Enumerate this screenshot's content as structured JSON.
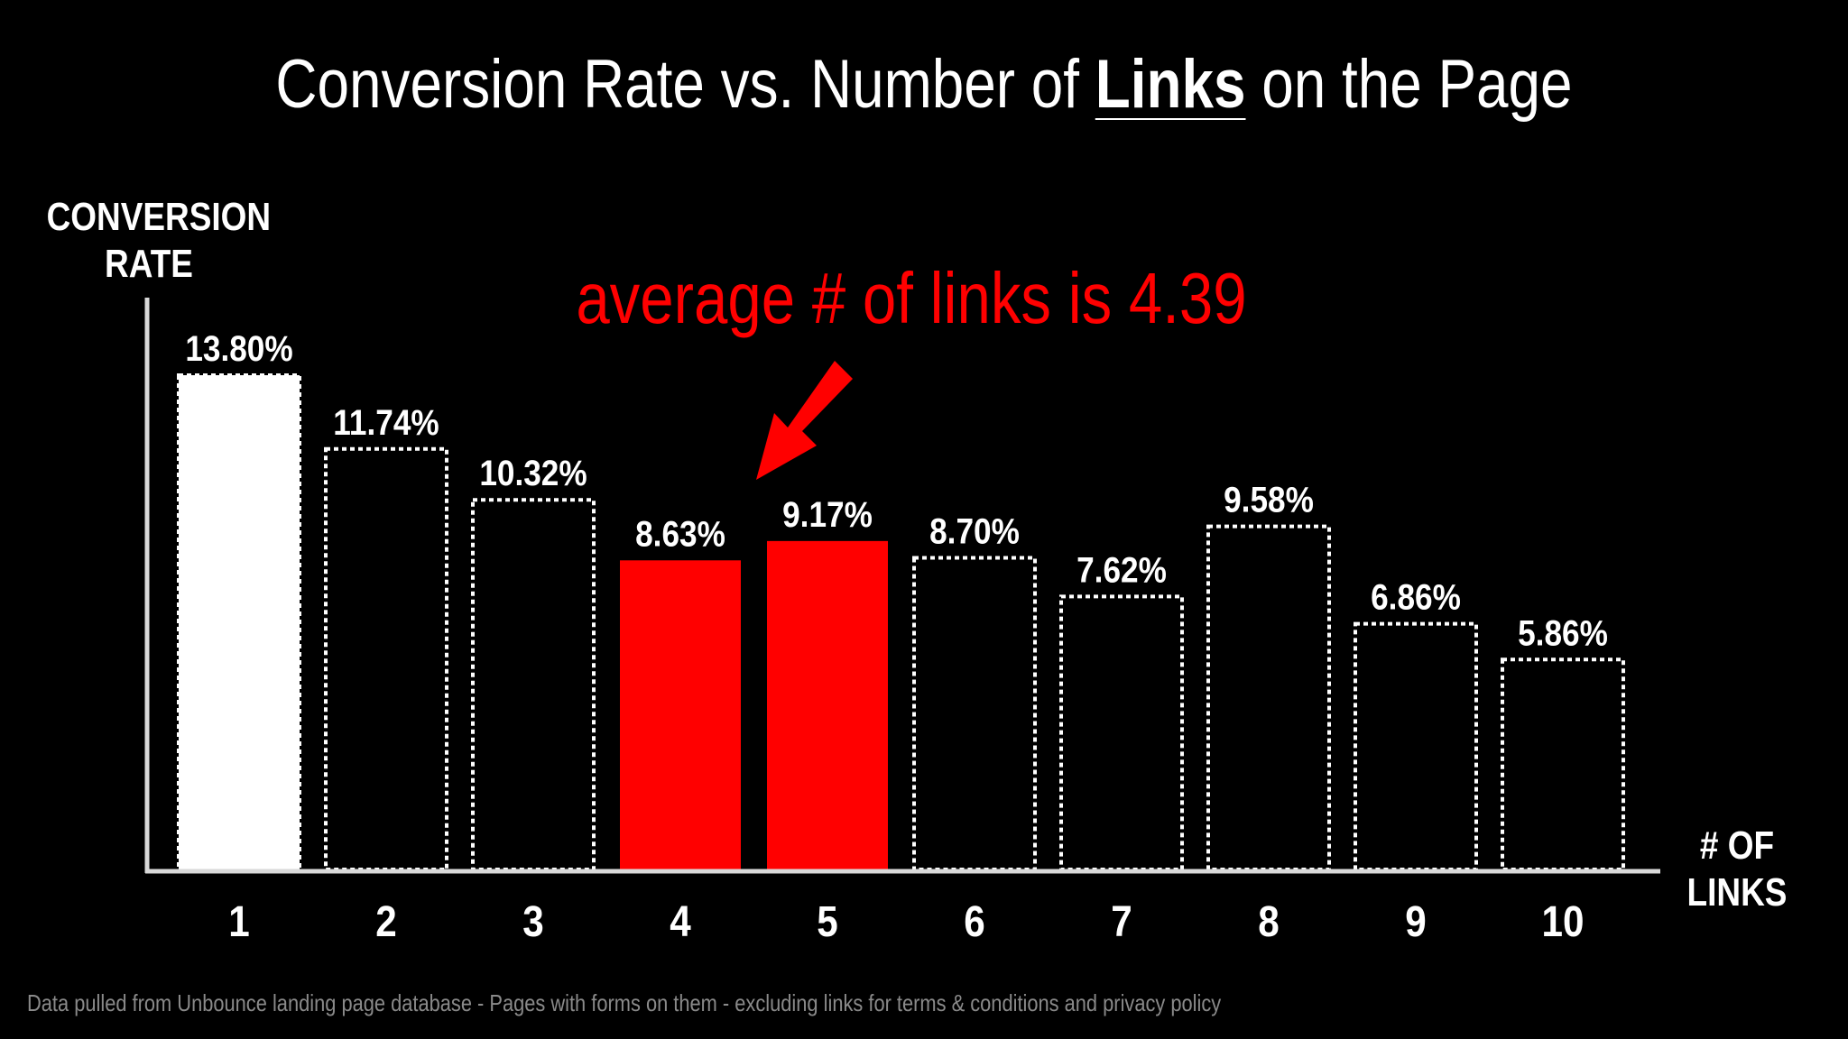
{
  "title": {
    "before": "Conversion Rate vs. Number of ",
    "emphasis": "Links",
    "after": " on the Page"
  },
  "annotation": "average # of links is 4.39",
  "footnote": "Data pulled from Unbounce landing page database - Pages with forms on them - excluding links for terms & conditions and privacy policy",
  "colors": {
    "background": "#000000",
    "bar_outline": "#ffffff",
    "highlight": "#ff0000",
    "top_bar_fill": "#ffffff"
  },
  "chart_data": {
    "type": "bar",
    "ylabel": "CONVERSION RATE",
    "xlabel": "# OF LINKS",
    "categories": [
      "1",
      "2",
      "3",
      "4",
      "5",
      "6",
      "7",
      "8",
      "9",
      "10"
    ],
    "values": [
      13.8,
      11.74,
      10.32,
      8.63,
      9.17,
      8.7,
      7.62,
      9.58,
      6.86,
      5.86
    ],
    "value_labels": [
      "13.80%",
      "11.74%",
      "10.32%",
      "8.63%",
      "9.17%",
      "8.70%",
      "7.62%",
      "9.58%",
      "6.86%",
      "5.86%"
    ],
    "bar_styles": [
      "solid-white",
      "dotted",
      "dotted",
      "solid-red",
      "solid-red",
      "dotted",
      "dotted",
      "dotted",
      "dotted",
      "dotted"
    ],
    "ylim": [
      0,
      13.8
    ],
    "grid": false
  }
}
